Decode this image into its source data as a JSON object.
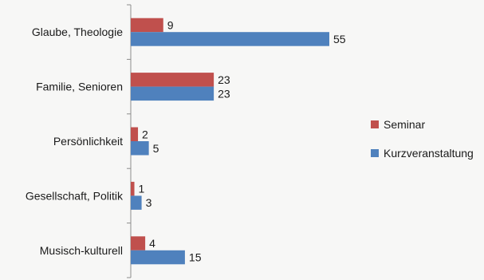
{
  "chart_data": {
    "type": "bar",
    "orientation": "horizontal",
    "categories": [
      "Glaube, Theologie",
      "Familie, Senioren",
      "Persönlichkeit",
      "Gesellschaft, Politik",
      "Musisch-kulturell"
    ],
    "series": [
      {
        "name": "Seminar",
        "color": "#c0504d",
        "values": [
          9,
          23,
          2,
          1,
          4
        ]
      },
      {
        "name": "Kurzveranstaltung",
        "color": "#4f81bd",
        "values": [
          55,
          23,
          5,
          3,
          15
        ]
      }
    ],
    "title": "",
    "xlabel": "",
    "ylabel": "",
    "xlim": [
      0,
      55
    ],
    "grid": false,
    "legend_position": "right"
  }
}
